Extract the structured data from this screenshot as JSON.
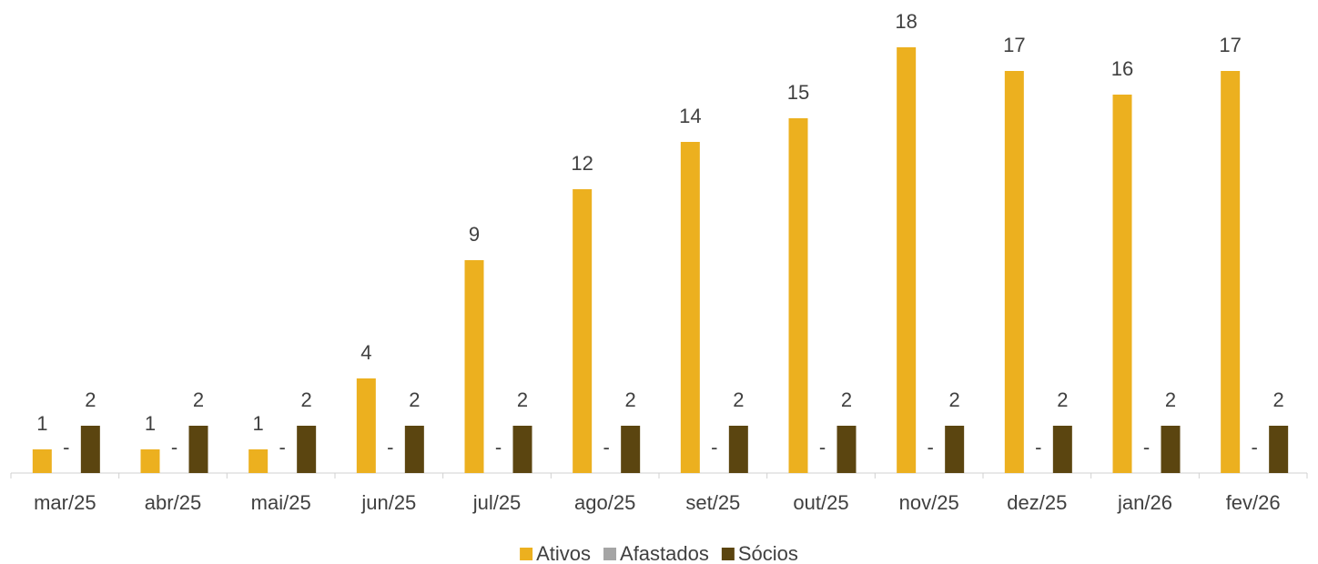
{
  "chart_data": {
    "type": "bar",
    "categories": [
      "mar/25",
      "abr/25",
      "mai/25",
      "jun/25",
      "jul/25",
      "ago/25",
      "set/25",
      "out/25",
      "nov/25",
      "dez/25",
      "jan/26",
      "fev/26"
    ],
    "series": [
      {
        "name": "Ativos",
        "color": "#ECB01F",
        "values": [
          1,
          1,
          1,
          4,
          9,
          12,
          14,
          15,
          18,
          17,
          16,
          17
        ]
      },
      {
        "name": "Afastados",
        "color": "#A5A5A5",
        "values": [
          0,
          0,
          0,
          0,
          0,
          0,
          0,
          0,
          0,
          0,
          0,
          0
        ],
        "value_labels": [
          "-",
          "-",
          "-",
          "-",
          "-",
          "-",
          "-",
          "-",
          "-",
          "-",
          "-",
          "-"
        ]
      },
      {
        "name": "Sócios",
        "color": "#5B4510",
        "values": [
          2,
          2,
          2,
          2,
          2,
          2,
          2,
          2,
          2,
          2,
          2,
          2
        ]
      }
    ],
    "legend": "bottom"
  }
}
